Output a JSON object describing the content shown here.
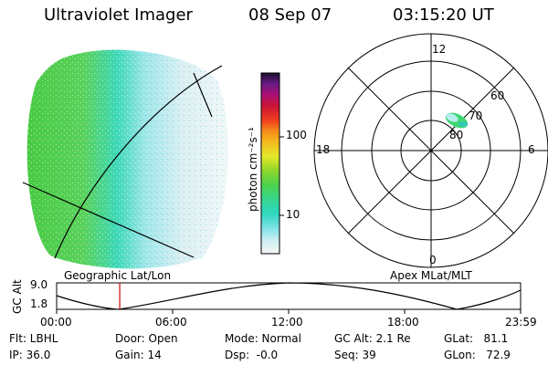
{
  "header": {
    "title": "Ultraviolet Imager",
    "date": "08 Sep 07",
    "time": "03:15:20 UT"
  },
  "colorbar": {
    "label": "photon cm⁻²s⁻¹",
    "ticks": [
      "100",
      "10"
    ]
  },
  "left_panel": {
    "caption": "Geographic Lat/Lon"
  },
  "right_panel": {
    "caption": "Apex MLat/MLT",
    "mlt_labels": {
      "top": "12",
      "right": "6",
      "bottom": "0",
      "left": "18"
    },
    "lat_labels": [
      "60",
      "70",
      "80"
    ]
  },
  "timeline": {
    "ylabel": "GC Alt",
    "yticks": [
      "9.0",
      "1.8"
    ],
    "xticks": [
      "00:00",
      "06:00",
      "12:00",
      "18:00",
      "23:59"
    ],
    "marker_fraction": 0.136
  },
  "status": {
    "flt": "Flt: LBHL",
    "ip": "IP: 36.0",
    "door": "Door: Open",
    "gain": "Gain: 14",
    "mode": "Mode: Normal",
    "dsp": "Dsp:  -0.0",
    "gc_alt": "GC Alt: 2.1 Re",
    "seq": "Seq: 39",
    "glat": "GLat:   81.1",
    "glon": "GLon:   72.9"
  }
}
